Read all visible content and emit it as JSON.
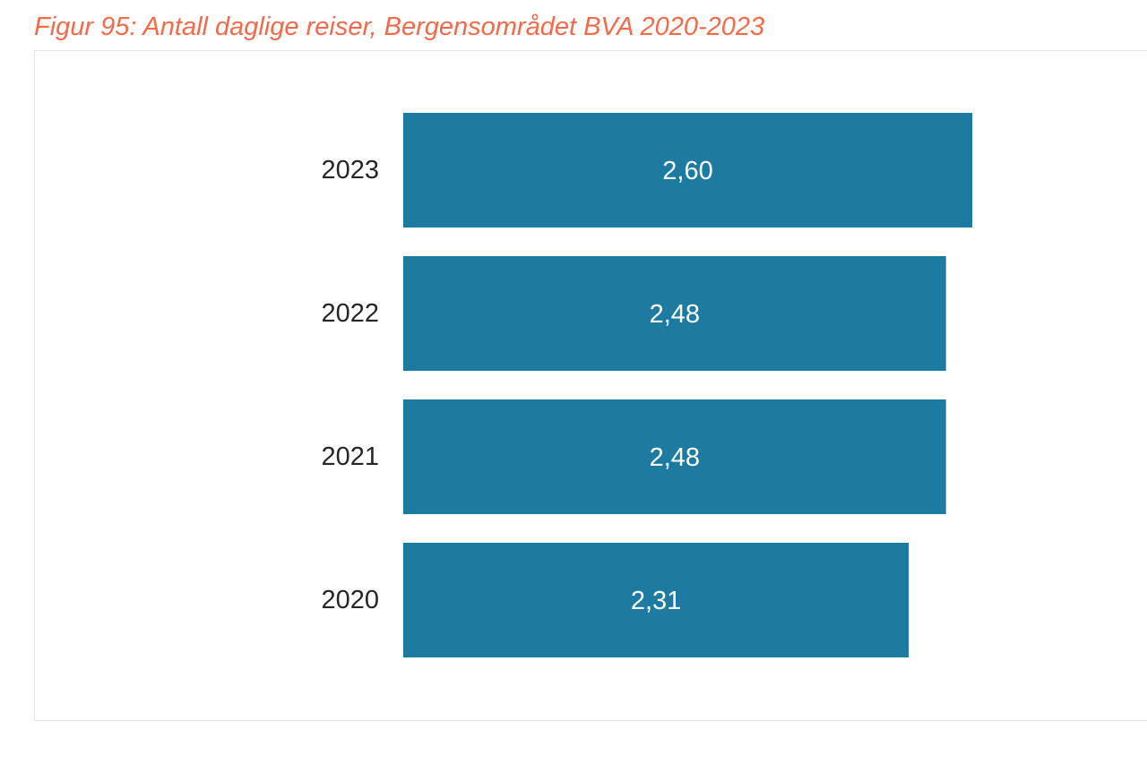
{
  "caption": {
    "text": "Figur 95: Antall daglige reiser, Bergensområdet BVA 2020-2023",
    "color": "#f4694a"
  },
  "chart_data": {
    "type": "bar",
    "orientation": "horizontal",
    "categories": [
      "2023",
      "2022",
      "2021",
      "2020"
    ],
    "values": [
      2.6,
      2.48,
      2.48,
      2.31
    ],
    "value_labels": [
      "2,60",
      "2,48",
      "2,48",
      "2,31"
    ],
    "title": "",
    "xlabel": "",
    "ylabel": "",
    "xlim": [
      0,
      2.6
    ],
    "grid": false,
    "legend": "none",
    "bar_color": "#1d7aa0",
    "label_color": "#ffffff",
    "category_color": "#262626"
  }
}
